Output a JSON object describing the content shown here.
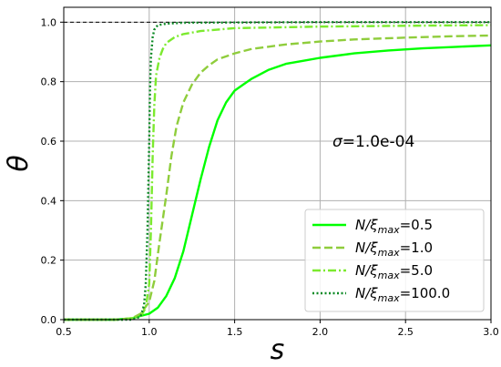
{
  "chart_data": {
    "type": "line",
    "title": "",
    "xlabel": "s",
    "ylabel": "θ",
    "xlim": [
      0.5,
      3.0
    ],
    "ylim": [
      0.0,
      1.05
    ],
    "xticks": [
      "0.5",
      "1.0",
      "1.5",
      "2.0",
      "2.5",
      "3.0"
    ],
    "yticks": [
      "0.0",
      "0.2",
      "0.4",
      "0.6",
      "0.8",
      "1.0"
    ],
    "grid": true,
    "reference_line": {
      "y": 1.0,
      "style": "dashed",
      "color": "#000000"
    },
    "annotation": {
      "sym": "σ",
      "text": "=1.0e-04"
    },
    "legend": {
      "placement": "lower-right"
    },
    "series": [
      {
        "label_prefix": "N/ξ",
        "label_sub": "max",
        "label_value": "=0.5",
        "color": "#00ff00",
        "style": "solid",
        "x": [
          0.5,
          0.8,
          0.9,
          1.0,
          1.05,
          1.1,
          1.15,
          1.2,
          1.25,
          1.3,
          1.35,
          1.4,
          1.45,
          1.5,
          1.55,
          1.6,
          1.7,
          1.8,
          1.9,
          2.0,
          2.2,
          2.4,
          2.6,
          2.8,
          3.0
        ],
        "y": [
          0.0,
          0.0,
          0.005,
          0.02,
          0.04,
          0.08,
          0.14,
          0.23,
          0.35,
          0.47,
          0.58,
          0.67,
          0.73,
          0.77,
          0.79,
          0.81,
          0.84,
          0.86,
          0.87,
          0.88,
          0.895,
          0.905,
          0.912,
          0.917,
          0.922
        ]
      },
      {
        "label_prefix": "N/ξ",
        "label_sub": "max",
        "label_value": "=1.0",
        "color": "#8fcd3c",
        "style": "dashed",
        "x": [
          0.5,
          0.8,
          0.9,
          0.95,
          1.0,
          1.03,
          1.06,
          1.1,
          1.13,
          1.16,
          1.2,
          1.25,
          1.3,
          1.35,
          1.4,
          1.5,
          1.6,
          1.8,
          2.0,
          2.2,
          2.5,
          2.8,
          3.0
        ],
        "y": [
          0.0,
          0.0,
          0.005,
          0.02,
          0.06,
          0.13,
          0.26,
          0.42,
          0.55,
          0.65,
          0.73,
          0.79,
          0.83,
          0.855,
          0.875,
          0.895,
          0.91,
          0.925,
          0.935,
          0.942,
          0.948,
          0.953,
          0.955
        ]
      },
      {
        "label_prefix": "N/ξ",
        "label_sub": "max",
        "label_value": "=5.0",
        "color": "#7cea2f",
        "style": "dashdot",
        "x": [
          0.5,
          0.85,
          0.95,
          0.98,
          1.0,
          1.01,
          1.02,
          1.03,
          1.04,
          1.06,
          1.08,
          1.1,
          1.15,
          1.2,
          1.3,
          1.5,
          2.0,
          2.5,
          3.0
        ],
        "y": [
          0.0,
          0.0,
          0.01,
          0.04,
          0.12,
          0.3,
          0.55,
          0.72,
          0.82,
          0.88,
          0.91,
          0.93,
          0.95,
          0.96,
          0.97,
          0.98,
          0.985,
          0.988,
          0.99
        ]
      },
      {
        "label_prefix": "N/ξ",
        "label_sub": "max",
        "label_value": "=100.0",
        "color": "#0d8a26",
        "style": "dotted",
        "x": [
          0.5,
          0.9,
          0.95,
          0.97,
          0.98,
          0.99,
          1.0,
          1.005,
          1.01,
          1.02,
          1.03,
          1.05,
          1.1,
          1.2,
          1.5,
          2.0,
          3.0
        ],
        "y": [
          0.0,
          0.0,
          0.01,
          0.05,
          0.12,
          0.3,
          0.6,
          0.78,
          0.88,
          0.95,
          0.975,
          0.99,
          0.995,
          0.998,
          0.999,
          1.0,
          1.0
        ]
      }
    ]
  }
}
